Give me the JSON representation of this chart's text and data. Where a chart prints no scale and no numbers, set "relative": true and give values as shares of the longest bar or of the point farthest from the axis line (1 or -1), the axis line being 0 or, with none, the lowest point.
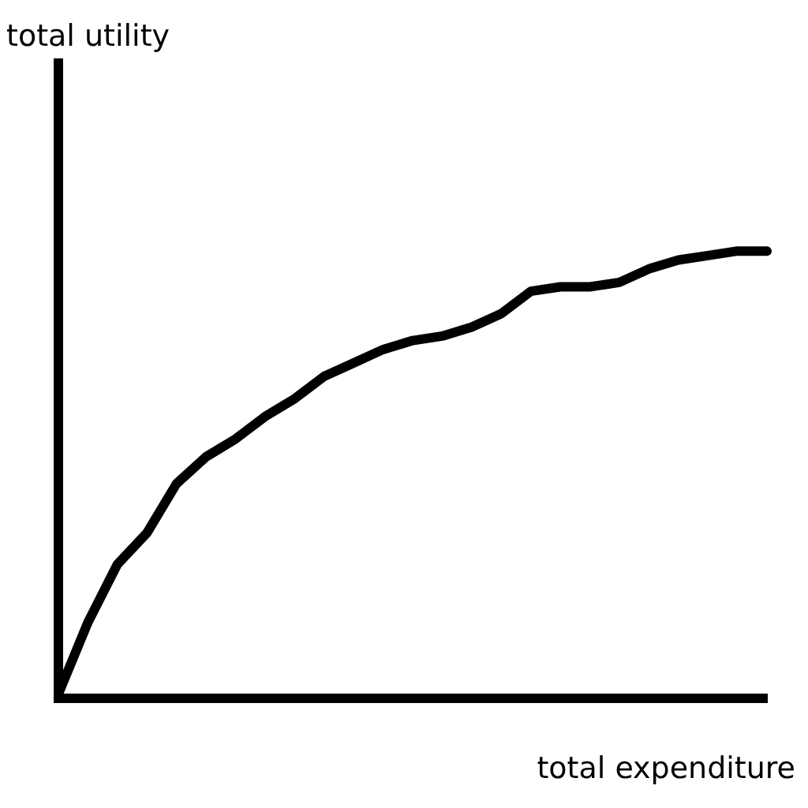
{
  "chart_data": {
    "type": "line",
    "xlabel": "total expenditure",
    "annotations": [
      "total utility"
    ],
    "relative": true,
    "grid": false,
    "legend": false,
    "marker": "none",
    "line_style": "solid",
    "categories": [
      null,
      null,
      null,
      null,
      null,
      null,
      null,
      null,
      null,
      null,
      null,
      null,
      null,
      null,
      null,
      null,
      null,
      null,
      null,
      null,
      null,
      null,
      null,
      null,
      null
    ],
    "series": [
      {
        "color": "#000000",
        "values": [
          0.01,
          0.17,
          0.3,
          0.37,
          0.48,
          0.54,
          0.58,
          0.63,
          0.67,
          0.72,
          0.75,
          0.78,
          0.8,
          0.81,
          0.83,
          0.86,
          0.91,
          0.92,
          0.92,
          0.93,
          0.96,
          0.98,
          0.99,
          1.0,
          1.0
        ]
      }
    ]
  }
}
